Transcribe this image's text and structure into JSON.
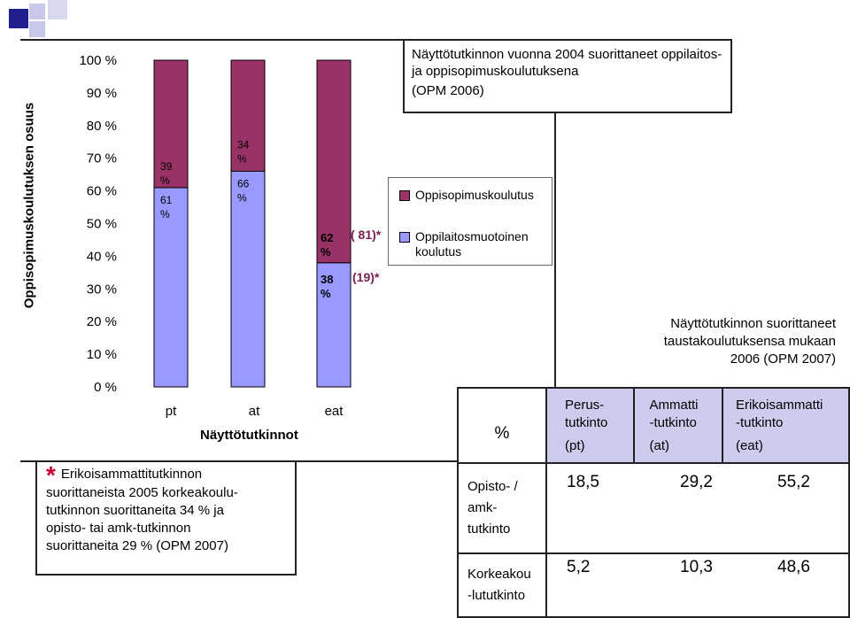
{
  "chart_data": {
    "type": "bar",
    "stacked": true,
    "title": "Näyttötutkinnon vuonna 2004 suorittaneet oppilaitos- ja oppisopimuskoulutuksena",
    "title_source": "(OPM 2006)",
    "ylabel": "Oppisopimuskoulutuksen osuus",
    "xlabel": "Näyttötutkinnot",
    "categories": [
      "pt",
      "at",
      "eat"
    ],
    "ylim": [
      0,
      100
    ],
    "yticks": [
      "0 %",
      "10 %",
      "20 %",
      "30 %",
      "40 %",
      "50 %",
      "60 %",
      "70 %",
      "80 %",
      "90 %",
      "100 %"
    ],
    "series": [
      {
        "name": "Oppilaitosmuotoinen koulutus",
        "values": [
          61,
          66,
          38
        ],
        "labels": [
          "61 %",
          "66 %",
          "38 %"
        ],
        "color": "#9999ff"
      },
      {
        "name": "Oppisopimuskoulutus",
        "values": [
          39,
          34,
          62
        ],
        "labels": [
          "39 %",
          "34 %",
          "62 %"
        ],
        "color": "#993366"
      }
    ],
    "annotations": [
      "( 81)*",
      "(19)*"
    ],
    "grid": false,
    "legend": "right"
  },
  "note": {
    "star": "*",
    "line1": "Erikoisammattitutkinnon",
    "line2": "suorittaneista 2005 korkeakoulu-",
    "line3": "tutkinnon suorittaneita 34 % ja",
    "line4": "opisto- tai amk-tutkinnon",
    "line5": "suorittaneita 29 % (OPM 2007)"
  },
  "info": {
    "line1": "Näyttötutkinnon suorittaneet",
    "line2": "taustakoulutuksensa mukaan",
    "line3": "2006 (OPM 2007)"
  },
  "table": {
    "corner": "%",
    "columns": [
      {
        "l1": "Perus-",
        "l2": "tutkinto",
        "l3": "(pt)"
      },
      {
        "l1": "Ammatti",
        "l2": "-tutkinto",
        "l3": "(at)"
      },
      {
        "l1": "Erikoisammatti",
        "l2": "-tutkinto",
        "l3": "(eat)"
      }
    ],
    "rows": [
      {
        "l1": "Opisto- /",
        "l2": "amk-",
        "l3": "tutkinto",
        "values": [
          "18,5",
          "29,2",
          "55,2"
        ]
      },
      {
        "l1": "Korkeakou",
        "l2": "-lututkinto",
        "values": [
          "5,2",
          "10,3",
          "48,6"
        ]
      }
    ]
  },
  "colors": {
    "deco_dark": "#1f1f8f",
    "deco_light": "#c8c8e8",
    "star": "#cc0033",
    "header_bg": "#ccccee"
  }
}
